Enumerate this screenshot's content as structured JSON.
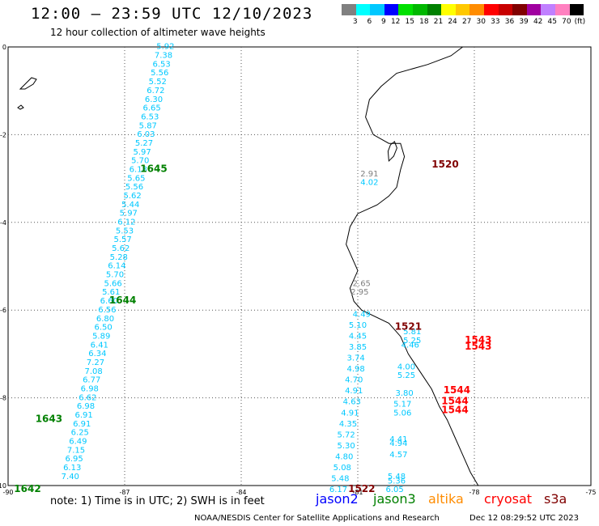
{
  "title": "12:00 – 23:59 UTC 12/10/2023",
  "subtitle": "12 hour collection of altimeter wave heights",
  "color_scale": {
    "colors": [
      "#808080",
      "#00ffff",
      "#00c8ff",
      "#0000ff",
      "#00e000",
      "#00b800",
      "#008000",
      "#ffff00",
      "#ffc800",
      "#ff8c00",
      "#ff0000",
      "#c80000",
      "#800000",
      "#a000a0",
      "#c080ff",
      "#ff80c0",
      "#000000"
    ],
    "labels": [
      "3",
      "6",
      "9",
      "12",
      "15",
      "18",
      "21",
      "24",
      "27",
      "30",
      "33",
      "36",
      "39",
      "42",
      "45",
      "70",
      "(ft)"
    ]
  },
  "chart_data": {
    "type": "scatter",
    "title": "12:00 – 23:59 UTC 12/10/2023",
    "subtitle": "12 hour collection of altimeter wave heights",
    "xlim": [
      -90,
      -75
    ],
    "ylim": [
      -10,
      0
    ],
    "x_ticks": [
      "-90",
      "-87",
      "-84",
      "-81",
      "-78",
      "-75"
    ],
    "x_tick_values": [
      -90,
      -87,
      -84,
      -81,
      -78,
      -75
    ],
    "y_ticks": [
      "0",
      "-2",
      "-4",
      "-6",
      "-8",
      "-10"
    ],
    "y_tick_values": [
      0,
      -2,
      -4,
      -6,
      -8,
      -10
    ],
    "grid": true,
    "values": [
      {
        "lon": -88.4,
        "lat": -9.85,
        "label": "7.40",
        "color": "#00c8ff"
      },
      {
        "lon": -88.35,
        "lat": -9.65,
        "label": "6.13",
        "color": "#00c8ff"
      },
      {
        "lon": -88.3,
        "lat": -9.45,
        "label": "6.95",
        "color": "#00c8ff"
      },
      {
        "lon": -88.25,
        "lat": -9.25,
        "label": "7.15",
        "color": "#00c8ff"
      },
      {
        "lon": -88.2,
        "lat": -9.05,
        "label": "6.49",
        "color": "#00c8ff"
      },
      {
        "lon": -88.15,
        "lat": -8.85,
        "label": "6.25",
        "color": "#00c8ff"
      },
      {
        "lon": -88.1,
        "lat": -8.65,
        "label": "6.91",
        "color": "#00c8ff"
      },
      {
        "lon": -88.05,
        "lat": -8.45,
        "label": "6.91",
        "color": "#00c8ff"
      },
      {
        "lon": -88.0,
        "lat": -8.25,
        "label": "6.98",
        "color": "#00c8ff"
      },
      {
        "lon": -87.95,
        "lat": -8.05,
        "label": "6.62",
        "color": "#00c8ff"
      },
      {
        "lon": -87.9,
        "lat": -7.85,
        "label": "6.98",
        "color": "#00c8ff"
      },
      {
        "lon": -87.85,
        "lat": -7.65,
        "label": "6.77",
        "color": "#00c8ff"
      },
      {
        "lon": -87.8,
        "lat": -7.45,
        "label": "7.08",
        "color": "#00c8ff"
      },
      {
        "lon": -87.75,
        "lat": -7.25,
        "label": "7.27",
        "color": "#00c8ff"
      },
      {
        "lon": -87.7,
        "lat": -7.05,
        "label": "6.34",
        "color": "#00c8ff"
      },
      {
        "lon": -87.65,
        "lat": -6.85,
        "label": "6.41",
        "color": "#00c8ff"
      },
      {
        "lon": -87.6,
        "lat": -6.65,
        "label": "5.89",
        "color": "#00c8ff"
      },
      {
        "lon": -87.55,
        "lat": -6.45,
        "label": "6.50",
        "color": "#00c8ff"
      },
      {
        "lon": -87.5,
        "lat": -6.25,
        "label": "6.80",
        "color": "#00c8ff"
      },
      {
        "lon": -87.45,
        "lat": -6.05,
        "label": "6.56",
        "color": "#00c8ff"
      },
      {
        "lon": -87.4,
        "lat": -5.85,
        "label": "6.60",
        "color": "#00c8ff"
      },
      {
        "lon": -87.35,
        "lat": -5.65,
        "label": "5.61",
        "color": "#00c8ff"
      },
      {
        "lon": -87.3,
        "lat": -5.45,
        "label": "5.66",
        "color": "#00c8ff"
      },
      {
        "lon": -87.25,
        "lat": -5.25,
        "label": "5.70",
        "color": "#00c8ff"
      },
      {
        "lon": -87.2,
        "lat": -5.05,
        "label": "6.14",
        "color": "#00c8ff"
      },
      {
        "lon": -87.15,
        "lat": -4.85,
        "label": "5.28",
        "color": "#00c8ff"
      },
      {
        "lon": -87.1,
        "lat": -4.65,
        "label": "5.62",
        "color": "#00c8ff"
      },
      {
        "lon": -87.05,
        "lat": -4.45,
        "label": "5.57",
        "color": "#00c8ff"
      },
      {
        "lon": -87.0,
        "lat": -4.25,
        "label": "5.53",
        "color": "#00c8ff"
      },
      {
        "lon": -86.95,
        "lat": -4.05,
        "label": "6.12",
        "color": "#00c8ff"
      },
      {
        "lon": -86.9,
        "lat": -3.85,
        "label": "5.97",
        "color": "#00c8ff"
      },
      {
        "lon": -86.85,
        "lat": -3.65,
        "label": "5.44",
        "color": "#00c8ff"
      },
      {
        "lon": -86.8,
        "lat": -3.45,
        "label": "5.62",
        "color": "#00c8ff"
      },
      {
        "lon": -86.75,
        "lat": -3.25,
        "label": "5.56",
        "color": "#00c8ff"
      },
      {
        "lon": -86.7,
        "lat": -3.05,
        "label": "5.65",
        "color": "#00c8ff"
      },
      {
        "lon": -86.65,
        "lat": -2.85,
        "label": "6.18",
        "color": "#00c8ff"
      },
      {
        "lon": -86.6,
        "lat": -2.65,
        "label": "5.70",
        "color": "#00c8ff"
      },
      {
        "lon": -86.55,
        "lat": -2.45,
        "label": "5.97",
        "color": "#00c8ff"
      },
      {
        "lon": -86.5,
        "lat": -2.25,
        "label": "5.27",
        "color": "#00c8ff"
      },
      {
        "lon": -86.45,
        "lat": -2.05,
        "label": "6.03",
        "color": "#00c8ff"
      },
      {
        "lon": -86.4,
        "lat": -1.85,
        "label": "5.87",
        "color": "#00c8ff"
      },
      {
        "lon": -86.35,
        "lat": -1.65,
        "label": "6.53",
        "color": "#00c8ff"
      },
      {
        "lon": -86.3,
        "lat": -1.45,
        "label": "6.65",
        "color": "#00c8ff"
      },
      {
        "lon": -86.25,
        "lat": -1.25,
        "label": "6.30",
        "color": "#00c8ff"
      },
      {
        "lon": -86.2,
        "lat": -1.05,
        "label": "6.72",
        "color": "#00c8ff"
      },
      {
        "lon": -86.15,
        "lat": -0.85,
        "label": "5.52",
        "color": "#00c8ff"
      },
      {
        "lon": -86.1,
        "lat": -0.65,
        "label": "5.56",
        "color": "#00c8ff"
      },
      {
        "lon": -86.05,
        "lat": -0.45,
        "label": "6.53",
        "color": "#00c8ff"
      },
      {
        "lon": -86.0,
        "lat": -0.25,
        "label": "7.38",
        "color": "#00c8ff"
      },
      {
        "lon": -85.95,
        "lat": -0.05,
        "label": "5.92",
        "color": "#00c8ff"
      },
      {
        "lon": -80.7,
        "lat": -2.95,
        "label": "2.91",
        "color": "#808080"
      },
      {
        "lon": -80.7,
        "lat": -3.15,
        "label": "4.02",
        "color": "#00c8ff"
      },
      {
        "lon": -80.9,
        "lat": -5.45,
        "label": "2.65",
        "color": "#808080"
      },
      {
        "lon": -80.95,
        "lat": -5.65,
        "label": "2.95",
        "color": "#808080"
      },
      {
        "lon": -80.9,
        "lat": -6.15,
        "label": "4.49",
        "color": "#00c8ff"
      },
      {
        "lon": -81.0,
        "lat": -6.4,
        "label": "5.10",
        "color": "#00c8ff"
      },
      {
        "lon": -81.0,
        "lat": -6.65,
        "label": "4.45",
        "color": "#00c8ff"
      },
      {
        "lon": -81.0,
        "lat": -6.9,
        "label": "3.85",
        "color": "#00c8ff"
      },
      {
        "lon": -81.05,
        "lat": -7.15,
        "label": "3.74",
        "color": "#00c8ff"
      },
      {
        "lon": -81.05,
        "lat": -7.4,
        "label": "4.98",
        "color": "#00c8ff"
      },
      {
        "lon": -81.1,
        "lat": -7.65,
        "label": "4.70",
        "color": "#00c8ff"
      },
      {
        "lon": -81.1,
        "lat": -7.9,
        "label": "4.91",
        "color": "#00c8ff"
      },
      {
        "lon": -81.15,
        "lat": -8.15,
        "label": "4.63",
        "color": "#00c8ff"
      },
      {
        "lon": -81.2,
        "lat": -8.4,
        "label": "4.91",
        "color": "#00c8ff"
      },
      {
        "lon": -81.25,
        "lat": -8.65,
        "label": "4.35",
        "color": "#00c8ff"
      },
      {
        "lon": -81.3,
        "lat": -8.9,
        "label": "5.72",
        "color": "#00c8ff"
      },
      {
        "lon": -81.3,
        "lat": -9.15,
        "label": "5.30",
        "color": "#00c8ff"
      },
      {
        "lon": -81.35,
        "lat": -9.4,
        "label": "4.80",
        "color": "#00c8ff"
      },
      {
        "lon": -81.4,
        "lat": -9.65,
        "label": "5.08",
        "color": "#00c8ff"
      },
      {
        "lon": -81.45,
        "lat": -9.9,
        "label": "5.48",
        "color": "#00c8ff"
      },
      {
        "lon": -81.5,
        "lat": -10.15,
        "label": "6.17",
        "color": "#00c8ff"
      },
      {
        "lon": -79.6,
        "lat": -6.55,
        "label": "5.81",
        "color": "#00c8ff"
      },
      {
        "lon": -79.6,
        "lat": -6.75,
        "label": "5.25",
        "color": "#00c8ff"
      },
      {
        "lon": -79.65,
        "lat": -6.85,
        "label": "4.46",
        "color": "#00c8ff"
      },
      {
        "lon": -79.75,
        "lat": -7.35,
        "label": "4.00",
        "color": "#00c8ff"
      },
      {
        "lon": -79.75,
        "lat": -7.55,
        "label": "5.25",
        "color": "#00c8ff"
      },
      {
        "lon": -79.8,
        "lat": -7.95,
        "label": "3.80",
        "color": "#00c8ff"
      },
      {
        "lon": -79.85,
        "lat": -8.2,
        "label": "5.17",
        "color": "#00c8ff"
      },
      {
        "lon": -79.85,
        "lat": -8.4,
        "label": "5.06",
        "color": "#00c8ff"
      },
      {
        "lon": -79.95,
        "lat": -9.0,
        "label": "4.41",
        "color": "#00c8ff"
      },
      {
        "lon": -79.95,
        "lat": -9.1,
        "label": "4.94",
        "color": "#00c8ff"
      },
      {
        "lon": -79.95,
        "lat": -9.35,
        "label": "4.57",
        "color": "#00c8ff"
      },
      {
        "lon": -80.0,
        "lat": -9.85,
        "label": "5.48",
        "color": "#00c8ff"
      },
      {
        "lon": -80.0,
        "lat": -9.95,
        "label": "5.36",
        "color": "#00c8ff"
      },
      {
        "lon": -80.05,
        "lat": -10.15,
        "label": "6.05",
        "color": "#00c8ff"
      }
    ],
    "time_labels": [
      {
        "lon": -86.25,
        "lat": -2.85,
        "label": "1645",
        "color": "#008000"
      },
      {
        "lon": -87.05,
        "lat": -5.85,
        "label": "1644",
        "color": "#008000"
      },
      {
        "lon": -88.95,
        "lat": -8.55,
        "label": "1643",
        "color": "#008000"
      },
      {
        "lon": -89.5,
        "lat": -10.15,
        "label": "1642",
        "color": "#008000"
      },
      {
        "lon": -78.75,
        "lat": -2.75,
        "label": "1520",
        "color": "#800000"
      },
      {
        "lon": -79.7,
        "lat": -6.45,
        "label": "1521",
        "color": "#800000"
      },
      {
        "lon": -80.9,
        "lat": -10.15,
        "label": "1522",
        "color": "#800000"
      },
      {
        "lon": -77.9,
        "lat": -6.75,
        "label": "1543",
        "color": "#ff0000"
      },
      {
        "lon": -77.9,
        "lat": -6.9,
        "label": "1543",
        "color": "#ff0000"
      },
      {
        "lon": -78.45,
        "lat": -7.9,
        "label": "1544",
        "color": "#ff0000"
      },
      {
        "lon": -78.5,
        "lat": -8.15,
        "label": "1544",
        "color": "#ff0000"
      },
      {
        "lon": -78.5,
        "lat": -8.35,
        "label": "1544",
        "color": "#ff0000"
      }
    ]
  },
  "footer": {
    "note": "note: 1) Time is in UTC; 2) SWH is in feet",
    "legend": [
      {
        "label": "jason2",
        "color": "#0000ff"
      },
      {
        "label": "jason3",
        "color": "#008000"
      },
      {
        "label": "altika",
        "color": "#ff8c00"
      },
      {
        "label": "cryosat",
        "color": "#ff0000"
      },
      {
        "label": "s3a",
        "color": "#800000"
      }
    ],
    "credit": "NOAA/NESDIS Center for Satellite Applications and Research",
    "timestamp": "Dec 12 08:29:52 UTC 2023"
  }
}
